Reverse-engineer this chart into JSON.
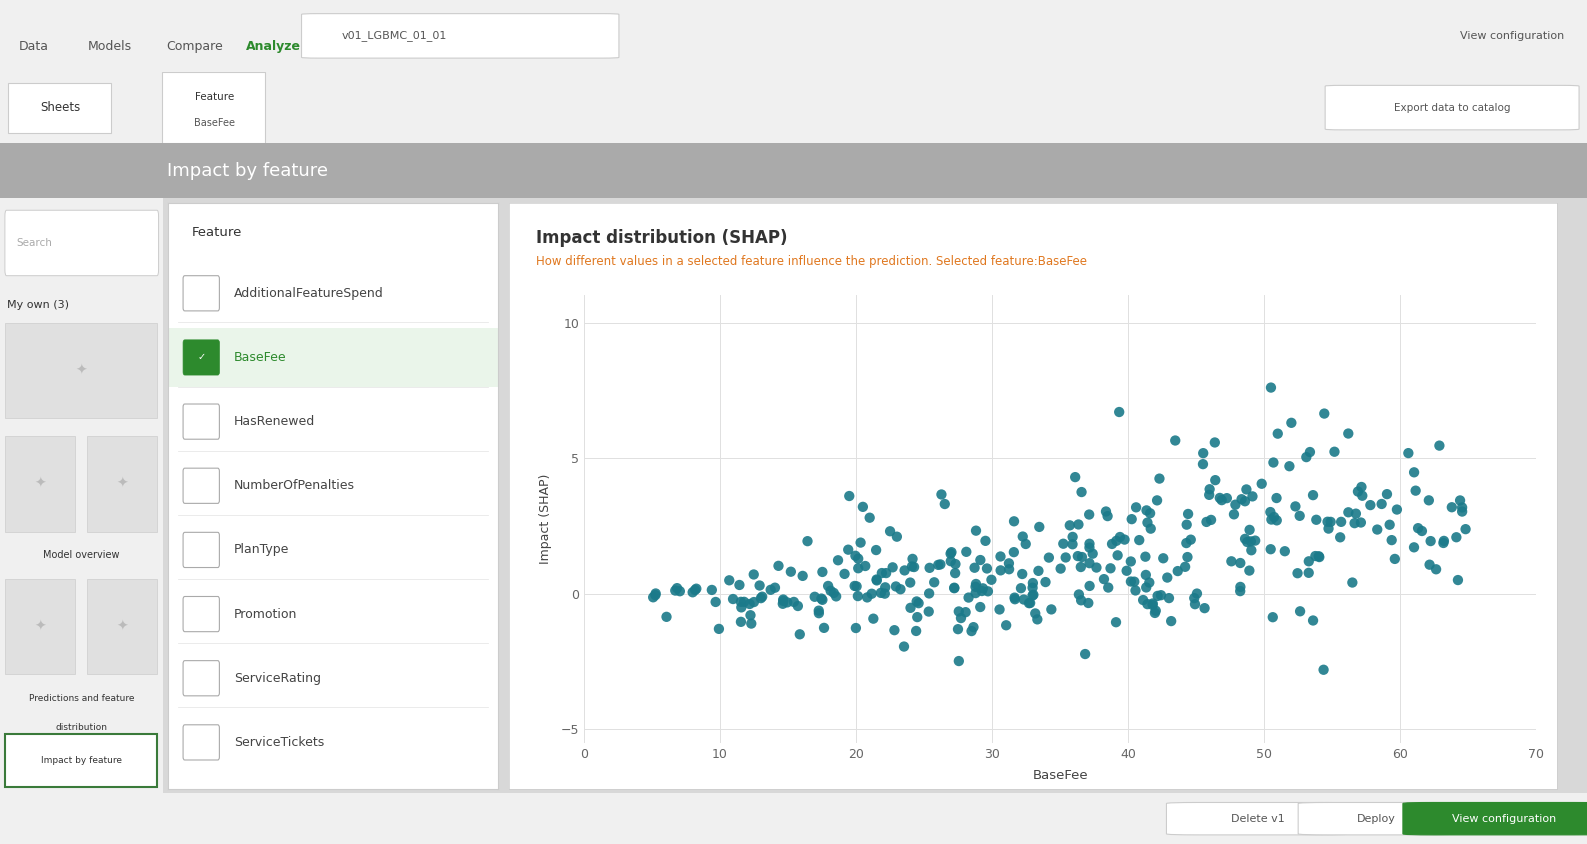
{
  "title": "Impact distribution (SHAP)",
  "subtitle": "How different values in a selected feature influence the prediction. Selected feature:BaseFee",
  "xlabel": "BaseFee",
  "ylabel": "Impact (SHAP)",
  "xlim": [
    0,
    70
  ],
  "ylim": [
    -5.5,
    11
  ],
  "xticks": [
    0,
    10,
    20,
    30,
    40,
    50,
    60,
    70
  ],
  "yticks": [
    -5,
    0,
    5,
    10
  ],
  "dot_color": "#1b7a8a",
  "bg_color": "#ffffff",
  "outer_bg": "#d8d8d8",
  "panel_bg": "#e8e8e8",
  "white_panel": "#ffffff",
  "title_color": "#333333",
  "subtitle_color": "#e07820",
  "grid_color": "#e0e0e0",
  "header_bg": "#c0c0c0",
  "seed": 12345,
  "features": [
    "AdditionalFeatureSpend",
    "BaseFee",
    "HasRenewed",
    "NumberOfPenalties",
    "PlanType",
    "Promotion",
    "ServiceRating",
    "ServiceTickets"
  ],
  "selected_feature": "BaseFee"
}
